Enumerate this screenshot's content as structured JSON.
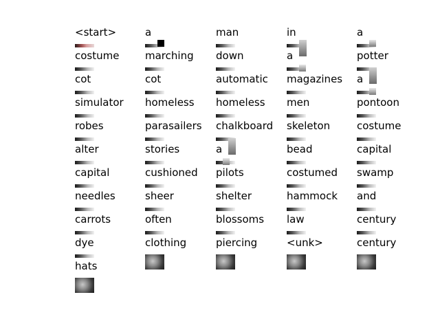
{
  "columns": [
    [
      "<start>",
      "costume",
      "cot",
      "simulator",
      "robes",
      "alter",
      "capital",
      "needles",
      "carrots",
      "dye",
      "hats"
    ],
    [
      "a",
      "marching",
      "cot",
      "homeless",
      "parasailers",
      "stories",
      "cushioned",
      "sheer",
      "often",
      "clothing"
    ],
    [
      "man",
      "down",
      "automatic",
      "homeless",
      "chalkboard",
      "a",
      "pilots",
      "shelter",
      "blossoms",
      "piercing"
    ],
    [
      "in",
      "a",
      "magazines",
      "men",
      "skeleton",
      "bead",
      "costumed",
      "hammock",
      "law",
      "<unk>"
    ],
    [
      "a",
      "potter",
      "a",
      "pontoon",
      "costume",
      "capital",
      "swamp",
      "and",
      "century",
      "century"
    ]
  ]
}
